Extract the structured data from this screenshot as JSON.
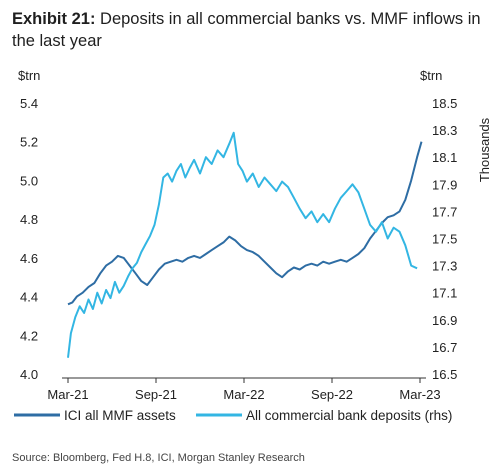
{
  "title_lead": "Exhibit 21:",
  "title_text": "Deposits in all commercial banks vs. MMF inflows in the last year",
  "source": "Source: Bloomberg, Fed H.8, ICI, Morgan Stanley Research",
  "colors": {
    "mmf": "#2e6da4",
    "deposits": "#33b6e3",
    "axis": "#333333"
  },
  "chart_data": {
    "type": "line",
    "x_ticks": [
      "Mar-21",
      "Sep-21",
      "Mar-22",
      "Sep-22",
      "Mar-23"
    ],
    "left_axis": {
      "unit": "$trn",
      "min": 4.0,
      "max": 5.4,
      "ticks": [
        "4.0",
        "4.2",
        "4.4",
        "4.6",
        "4.8",
        "5.0",
        "5.2",
        "5.4"
      ]
    },
    "right_axis": {
      "unit": "$trn",
      "label": "Thousands",
      "min": 16.5,
      "max": 18.5,
      "ticks": [
        "16.5",
        "16.7",
        "16.9",
        "17.1",
        "17.3",
        "17.5",
        "17.7",
        "17.9",
        "18.1",
        "18.3",
        "18.5"
      ]
    },
    "series": [
      {
        "name": "ICI all MMF assets",
        "axis": "left",
        "x": [
          0,
          0.3,
          0.6,
          1,
          1.4,
          1.8,
          2.2,
          2.6,
          3,
          3.4,
          3.8,
          4.2,
          4.6,
          5,
          5.4,
          5.8,
          6.2,
          6.6,
          7,
          7.4,
          7.8,
          8.2,
          8.6,
          9,
          9.4,
          9.8,
          10.2,
          10.6,
          11,
          11.4,
          11.8,
          12.2,
          12.6,
          13,
          13.4,
          13.8,
          14.2,
          14.6,
          15,
          15.4,
          15.8,
          16.2,
          16.6,
          17,
          17.4,
          17.8,
          18.2,
          18.6,
          19,
          19.4,
          19.8,
          20.2,
          20.6,
          21,
          21.4,
          21.8,
          22.2,
          22.6,
          23,
          23.4,
          23.8,
          24.1
        ],
        "values": [
          4.36,
          4.37,
          4.4,
          4.42,
          4.45,
          4.47,
          4.52,
          4.56,
          4.58,
          4.61,
          4.6,
          4.56,
          4.52,
          4.48,
          4.46,
          4.5,
          4.54,
          4.57,
          4.58,
          4.59,
          4.58,
          4.6,
          4.61,
          4.6,
          4.62,
          4.64,
          4.66,
          4.68,
          4.71,
          4.69,
          4.66,
          4.64,
          4.63,
          4.61,
          4.58,
          4.55,
          4.52,
          4.5,
          4.53,
          4.55,
          4.54,
          4.56,
          4.57,
          4.56,
          4.58,
          4.57,
          4.58,
          4.59,
          4.58,
          4.6,
          4.62,
          4.65,
          4.7,
          4.74,
          4.78,
          4.81,
          4.82,
          4.84,
          4.9,
          5.0,
          5.12,
          5.2
        ]
      },
      {
        "name": "All commercial bank deposits (rhs)",
        "axis": "right",
        "x": [
          0,
          0.2,
          0.5,
          0.8,
          1.1,
          1.4,
          1.7,
          2,
          2.3,
          2.6,
          2.9,
          3.2,
          3.5,
          3.8,
          4.1,
          4.4,
          4.7,
          5,
          5.3,
          5.6,
          5.9,
          6.2,
          6.5,
          6.8,
          7.1,
          7.4,
          7.7,
          8,
          8.3,
          8.6,
          9,
          9.4,
          9.8,
          10.2,
          10.6,
          11,
          11.3,
          11.6,
          11.9,
          12.2,
          12.6,
          13,
          13.4,
          13.8,
          14.2,
          14.6,
          15,
          15.4,
          15.8,
          16.2,
          16.6,
          17,
          17.4,
          17.8,
          18.2,
          18.6,
          19,
          19.4,
          19.8,
          20.2,
          20.6,
          21,
          21.4,
          21.8,
          22.2,
          22.6,
          23,
          23.4,
          23.8
        ],
        "values": [
          16.62,
          16.8,
          16.92,
          17.0,
          16.95,
          17.05,
          16.98,
          17.1,
          17.02,
          17.12,
          17.06,
          17.18,
          17.1,
          17.15,
          17.22,
          17.28,
          17.32,
          17.4,
          17.46,
          17.52,
          17.6,
          17.75,
          17.95,
          17.98,
          17.92,
          18.0,
          18.05,
          17.95,
          18.02,
          18.08,
          17.98,
          18.1,
          18.05,
          18.15,
          18.1,
          18.2,
          18.28,
          18.05,
          18.0,
          17.92,
          17.98,
          17.88,
          17.95,
          17.9,
          17.85,
          17.92,
          17.88,
          17.8,
          17.72,
          17.65,
          17.7,
          17.62,
          17.68,
          17.62,
          17.72,
          17.8,
          17.85,
          17.9,
          17.84,
          17.72,
          17.6,
          17.55,
          17.62,
          17.5,
          17.58,
          17.55,
          17.45,
          17.3,
          17.28
        ]
      }
    ],
    "legend_position": "bottom"
  }
}
